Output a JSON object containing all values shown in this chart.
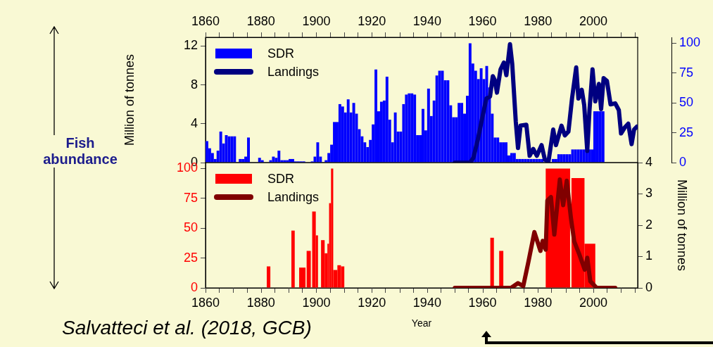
{
  "chart_data": [
    {
      "type": "histogram",
      "annotations": [
        "Fish abundance"
      ],
      "ylabel": "Million of tonnes",
      "xlim": [
        1860,
        2016
      ],
      "xticks": [
        1860,
        {
          "value": 1870,
          "label": null
        },
        1880,
        {
          "value": 1890,
          "label": null
        },
        1900,
        {
          "value": 1910,
          "label": null
        },
        1920,
        {
          "value": 1930,
          "label": null
        },
        1940,
        {
          "value": 1950,
          "label": null
        },
        1960,
        {
          "value": 1970,
          "label": null
        },
        1980,
        {
          "value": 1990,
          "label": null
        },
        2000,
        {
          "value": 2010,
          "label": null
        }
      ],
      "ylim": [
        0,
        12.9
      ],
      "yticks": [
        0,
        4,
        8,
        12
      ],
      "y2lim": [
        0,
        105
      ],
      "y2ticks": [
        0,
        25,
        50,
        75,
        100
      ],
      "grid": false,
      "legend": "top left",
      "series": [
        {
          "name": "SDR",
          "type": "histogram",
          "axis": "y2",
          "color": "#0000ff",
          "bins": [
            1860,
            1861,
            1862,
            1863,
            1864,
            1865,
            1866,
            1867,
            1868,
            1869,
            1870,
            1871,
            1872,
            1873,
            1874,
            1875,
            1876,
            1877,
            1878,
            1879,
            1880,
            1881,
            1882,
            1883,
            1884,
            1885,
            1886,
            1887,
            1888,
            1889,
            1890,
            1891,
            1892,
            1893,
            1894,
            1895,
            1896,
            1897,
            1898,
            1899,
            1900,
            1901,
            1902,
            1903,
            1904,
            1905,
            1906,
            1907,
            1908,
            1909,
            1910,
            1911,
            1912,
            1913,
            1914,
            1915,
            1916,
            1917,
            1918,
            1919,
            1920,
            1921,
            1922,
            1923,
            1924,
            1925,
            1926,
            1927,
            1928,
            1929,
            1930,
            1931,
            1932,
            1933,
            1934,
            1935,
            1936,
            1937,
            1938,
            1939,
            1940,
            1941,
            1942,
            1943,
            1944,
            1945,
            1946,
            1947,
            1948,
            1949,
            1950,
            1951,
            1952,
            1953,
            1954,
            1955,
            1956,
            1957,
            1958,
            1959,
            1960,
            1961,
            1962,
            1963,
            1964,
            1965,
            1966,
            1967,
            1968,
            1969,
            1970,
            1971,
            1972,
            1973,
            1974,
            1975,
            1976,
            1977,
            1978,
            1979,
            1980,
            1981,
            1982,
            1983,
            1984,
            1985,
            1986,
            1987,
            1988,
            1989,
            1990,
            1991,
            1992,
            1993,
            1994,
            1995,
            1996,
            1997,
            1998,
            1999,
            2000,
            2001,
            2002,
            2003,
            2004
          ],
          "values": [
            18,
            12,
            8,
            3,
            10,
            26,
            16,
            23,
            22,
            22,
            22,
            null,
            3,
            3,
            5,
            21,
            null,
            null,
            null,
            4,
            2,
            null,
            null,
            2,
            5,
            4,
            10,
            2,
            2,
            2,
            3,
            3,
            1,
            1,
            1,
            1,
            null,
            null,
            1,
            5,
            17,
            5,
            null,
            2,
            8,
            15,
            34,
            34,
            49,
            47,
            42,
            53,
            42,
            50,
            41,
            28,
            22,
            17,
            13,
            19,
            32,
            78,
            43,
            51,
            52,
            72,
            36,
            17,
            42,
            26,
            26,
            49,
            57,
            58,
            58,
            57,
            23,
            23,
            45,
            27,
            62,
            39,
            52,
            73,
            77,
            77,
            69,
            69,
            48,
            38,
            38,
            50,
            50,
            41,
            56,
            100,
            83,
            77,
            70,
            79,
            70,
            81,
            63,
            41,
            21,
            21,
            17,
            17,
            17,
            6,
            8,
            8,
            3,
            3,
            3,
            3,
            3,
            3,
            3,
            3,
            3,
            3,
            null,
            null,
            null,
            3,
            3,
            7,
            7,
            7,
            7,
            7,
            11,
            11,
            11,
            11,
            11,
            11,
            11,
            11,
            43,
            43,
            43,
            43
          ]
        },
        {
          "name": "Landings",
          "type": "line",
          "color": "#000080",
          "x": [
            1950,
            1955.5,
            1956.7,
            1958.4,
            1960.1,
            1961.4,
            1962.7,
            1963.7,
            1964.4,
            1965.2,
            1966.5,
            1967.7,
            1968.6,
            1969.9,
            1970.7,
            1972,
            1972.8,
            1973.7,
            1975.8,
            1977,
            1978.3,
            1979.6,
            1981.3,
            1982.5,
            1983.8,
            1985.5,
            1986.5,
            1988.5,
            1989.7,
            1991,
            1992.3,
            1993.8,
            1994.6,
            1995.8,
            1996.7,
            1997.8,
            1998.6,
            1999.7,
            2000.7,
            2002,
            2002.8,
            2003.7,
            2004.9,
            2006.2,
            2007.9,
            2009.2,
            2010,
            2011.3,
            2012.6,
            2013.8,
            2014.7,
            2015.7
          ],
          "values": [
            0,
            0,
            0.5,
            2.5,
            4.9,
            6.6,
            6.8,
            8.9,
            8.5,
            7.2,
            9.6,
            10.3,
            9.0,
            12.2,
            10.2,
            4.2,
            1.5,
            3.8,
            3.9,
            0.7,
            1.4,
            0.7,
            1.8,
            0.3,
            0.1,
            3.4,
            1.8,
            3.8,
            2.8,
            3.2,
            6.6,
            9.8,
            6.6,
            7.5,
            5.9,
            1.2,
            5.4,
            9.6,
            6.3,
            8.1,
            5.5,
            8.7,
            8.4,
            6.0,
            6.1,
            5.4,
            3.0,
            3.6,
            4.0,
            1.9,
            3.4,
            3.7
          ]
        }
      ]
    },
    {
      "type": "histogram",
      "annotations": [
        "Salvatteci et al. (2018, GCB)"
      ],
      "xlabel": "Year",
      "y2label": "Million of tonnes",
      "xlim": [
        1860,
        2016
      ],
      "xticks": [
        1860,
        {
          "value": 1870,
          "label": null
        },
        1880,
        {
          "value": 1890,
          "label": null
        },
        1900,
        {
          "value": 1910,
          "label": null
        },
        1920,
        {
          "value": 1930,
          "label": null
        },
        1940,
        {
          "value": 1950,
          "label": null
        },
        1960,
        {
          "value": 1970,
          "label": null
        },
        1980,
        {
          "value": 1990,
          "label": null
        },
        2000,
        {
          "value": 2010,
          "label": null
        }
      ],
      "ylim": [
        0,
        105
      ],
      "yticks": [
        0,
        25,
        50,
        75,
        100
      ],
      "y2lim": [
        0,
        4
      ],
      "y2ticks": [
        0,
        1,
        2,
        3,
        4
      ],
      "grid": false,
      "legend": "top left",
      "series": [
        {
          "name": "SDR",
          "type": "histogram",
          "color": "#ff0000",
          "bins": [
            1882.1,
            1883.4,
            1891.0,
            1892.2,
            1893.8,
            1896.1,
            1896.5,
            1898.0,
            1898.5,
            1899.8,
            1900.6,
            1901.7,
            1903.0,
            1904.0,
            1904.6,
            1905.3,
            1906.1,
            1907.6,
            1908.9,
            1910.1,
            1962.8,
            1964.1,
            1966.0,
            1967.5,
            1982.8,
            1991.6,
            1992.1,
            1996.8,
            2000.7
          ],
          "values": [
            18,
            null,
            48,
            null,
            17,
            null,
            31,
            null,
            64,
            44,
            null,
            40,
            29,
            37,
            71,
            100,
            15,
            19,
            18,
            null,
            42,
            null,
            31,
            null,
            100,
            null,
            92,
            37
          ]
        },
        {
          "name": "Landings",
          "type": "line",
          "axis": "y2",
          "color": "#800000",
          "x": [
            1950,
            1962.7,
            1967.7,
            1970.3,
            1972.8,
            1974.7,
            1976.6,
            1978.7,
            1980.9,
            1981.7,
            1982.8,
            1983.4,
            1984.7,
            1985.9,
            1987.9,
            1989.1,
            1990.4,
            1991.9,
            1993.1,
            1994.8,
            1996.9,
            1997.8,
            1998.9,
            2001.2,
            2007.9
          ],
          "values": [
            0,
            0,
            0,
            0,
            0.15,
            0.06,
            0.85,
            1.78,
            1.18,
            1.5,
            1.22,
            2.79,
            2.9,
            1.7,
            3.46,
            2.64,
            3.42,
            2.23,
            1.48,
            1.1,
            0.58,
            0.96,
            0.21,
            0,
            0
          ]
        }
      ]
    }
  ]
}
